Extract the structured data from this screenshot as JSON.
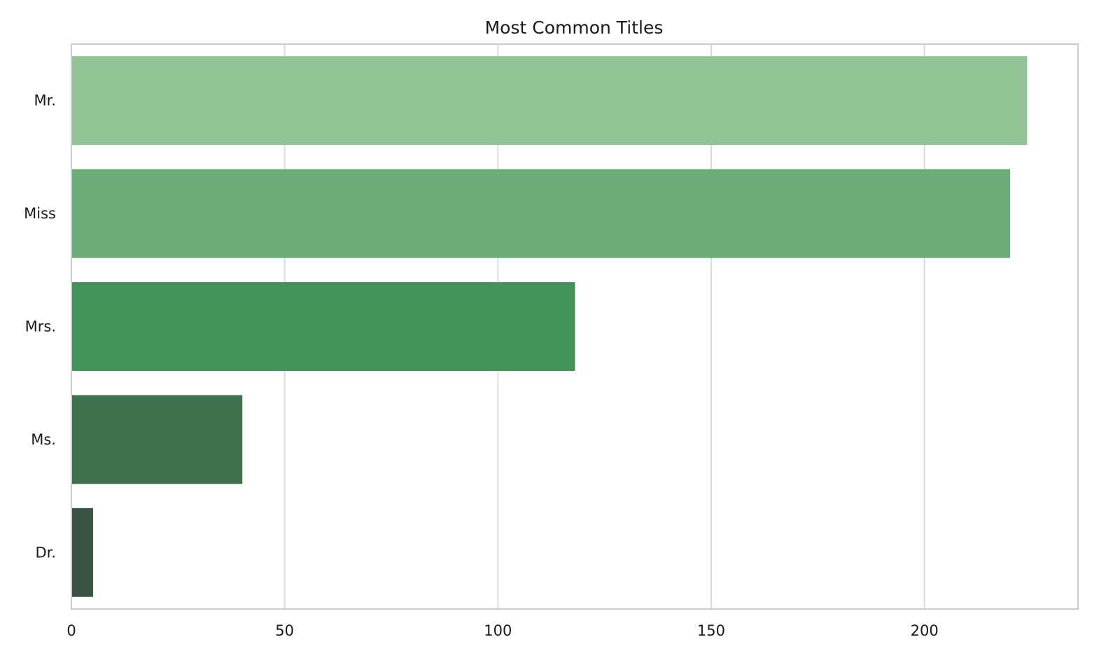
{
  "chart_data": {
    "type": "bar",
    "orientation": "horizontal",
    "title": "Most Common Titles",
    "xlabel": "",
    "ylabel": "",
    "categories": [
      "Mr.",
      "Miss",
      "Mrs.",
      "Ms.",
      "Dr."
    ],
    "values": [
      224,
      220,
      118,
      40,
      5
    ],
    "colors": [
      "#92c394",
      "#6aab77",
      "#44935b",
      "#3f714e",
      "#3a5444"
    ],
    "xlim": [
      0,
      236
    ],
    "xticks": [
      0,
      50,
      100,
      150,
      200
    ],
    "xtick_labels": [
      "0",
      "50",
      "100",
      "150",
      "200"
    ],
    "grid": "vertical",
    "legend": "none"
  }
}
